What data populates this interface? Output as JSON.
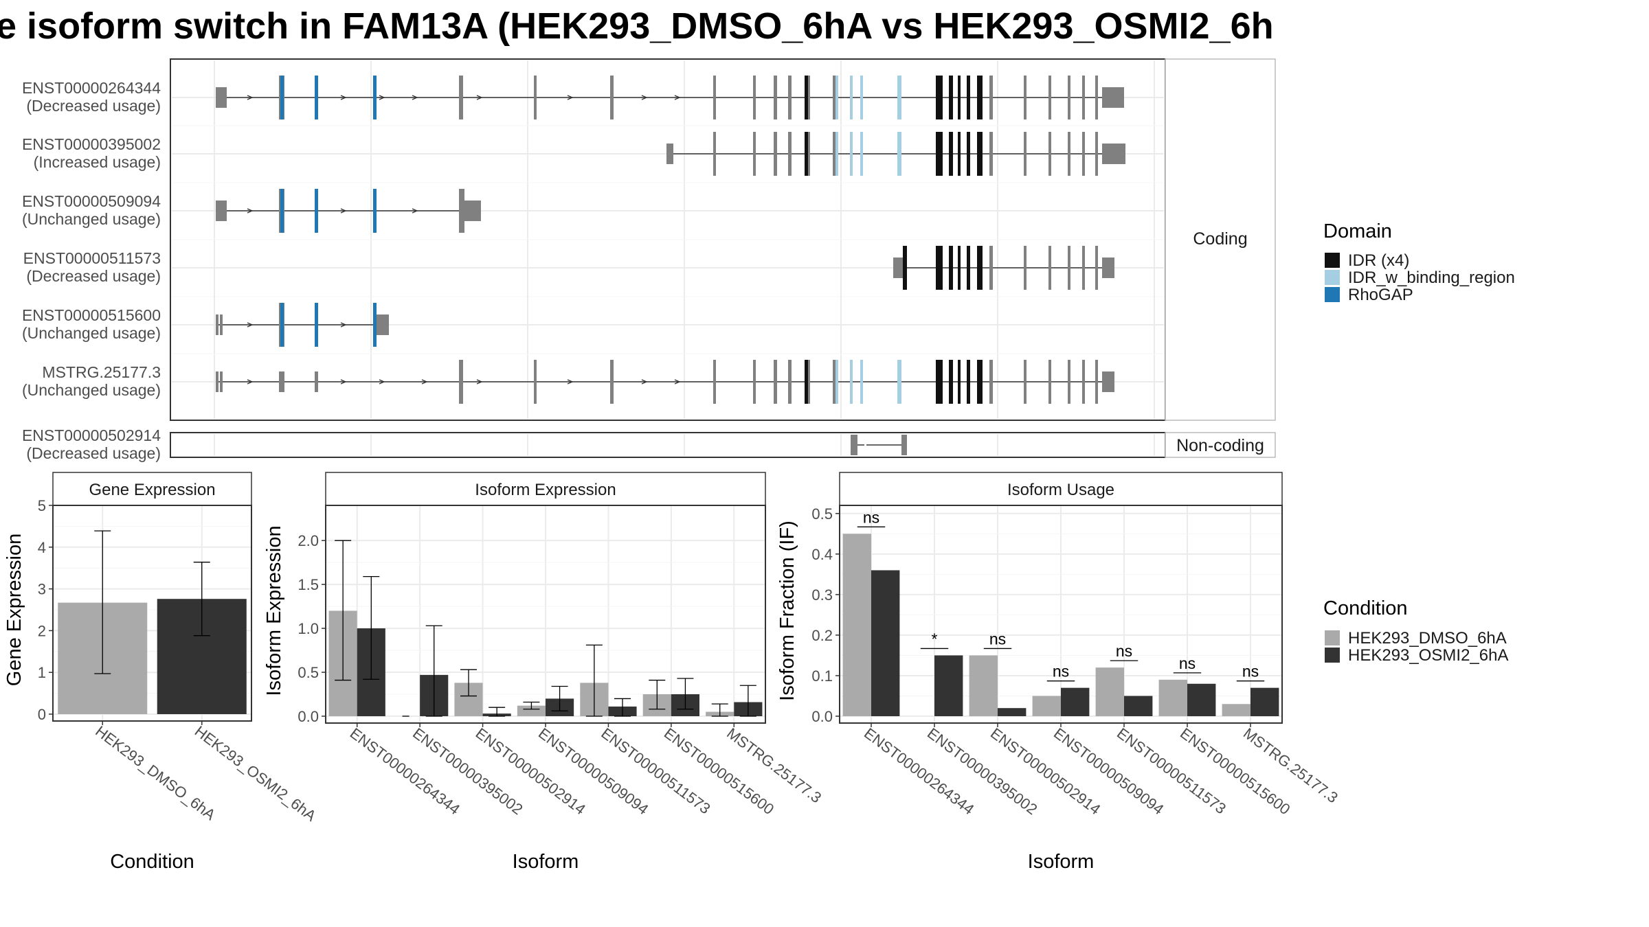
{
  "title": "e isoform switch in FAM13A (HEK293_DMSO_6hA vs HEK293_OSMI2_6h",
  "colors": {
    "grey_feature": "#808080",
    "idr": "#111111",
    "idr_w_binding": "#a6cee3",
    "rhogap": "#1f78b4",
    "cond1": "#aaaaaa",
    "cond2": "#333333",
    "grid": "#ebebeb",
    "frame": "#333333"
  },
  "transcripts": {
    "coding_label": "Coding",
    "noncoding_label": "Non-coding",
    "rows": [
      {
        "id": "ENST00000264344",
        "usage": "(Decreased usage)"
      },
      {
        "id": "ENST00000395002",
        "usage": "(Increased usage)"
      },
      {
        "id": "ENST00000509094",
        "usage": "(Unchanged usage)"
      },
      {
        "id": "ENST00000511573",
        "usage": "(Decreased usage)"
      },
      {
        "id": "ENST00000515600",
        "usage": "(Unchanged usage)"
      },
      {
        "id": "MSTRG.25177.3",
        "usage": "(Unchanged usage)"
      }
    ],
    "noncoding_rows": [
      {
        "id": "ENST00000502914",
        "usage": "(Decreased usage)"
      }
    ]
  },
  "domain_legend": {
    "title": "Domain",
    "items": [
      {
        "label": "IDR (x4)",
        "color": "#111111"
      },
      {
        "label": "IDR_w_binding_region",
        "color": "#a6cee3"
      },
      {
        "label": "RhoGAP",
        "color": "#1f78b4"
      }
    ]
  },
  "condition_legend": {
    "title": "Condition",
    "items": [
      {
        "label": "HEK293_DMSO_6hA",
        "color": "#aaaaaa"
      },
      {
        "label": "HEK293_OSMI2_6hA",
        "color": "#333333"
      }
    ]
  },
  "chart_data": [
    {
      "type": "bar",
      "title": "Gene Expression",
      "xlabel": "Condition",
      "ylabel": "Gene Expression",
      "ylim": [
        0,
        5
      ],
      "yticks": [
        "0",
        "1",
        "2",
        "3",
        "4",
        "5"
      ],
      "categories": [
        "HEK293_DMSO_6hA",
        "HEK293_OSMI2_6hA"
      ],
      "values": [
        2.67,
        2.76
      ],
      "error_low": [
        0.97,
        1.88
      ],
      "error_high": [
        4.39,
        3.64
      ]
    },
    {
      "type": "bar",
      "title": "Isoform Expression",
      "xlabel": "Isoform",
      "ylabel": "Isoform Expression",
      "ylim": [
        0,
        2.4
      ],
      "yticks": [
        "0.0",
        "0.5",
        "1.0",
        "1.5",
        "2.0"
      ],
      "categories": [
        "ENST00000264344",
        "ENST00000395002",
        "ENST00000502914",
        "ENST00000509094",
        "ENST00000511573",
        "ENST00000515600",
        "MSTRG.25177.3"
      ],
      "series": [
        {
          "name": "HEK293_DMSO_6hA",
          "values": [
            1.2,
            0.0,
            0.38,
            0.12,
            0.38,
            0.25,
            0.05
          ],
          "error_low": [
            0.41,
            0.0,
            0.23,
            0.08,
            0.0,
            0.08,
            0.0
          ],
          "error_high": [
            2.0,
            0.0,
            0.53,
            0.16,
            0.81,
            0.41,
            0.14
          ]
        },
        {
          "name": "HEK293_OSMI2_6hA",
          "values": [
            1.0,
            0.47,
            0.03,
            0.2,
            0.11,
            0.25,
            0.16
          ],
          "error_low": [
            0.42,
            0.0,
            0.0,
            0.06,
            0.0,
            0.08,
            0.0
          ],
          "error_high": [
            1.59,
            1.03,
            0.1,
            0.34,
            0.2,
            0.43,
            0.35
          ]
        }
      ]
    },
    {
      "type": "bar",
      "title": "Isoform Usage",
      "xlabel": "Isoform",
      "ylabel": "Isoform Fraction (IF)",
      "ylim": [
        0,
        0.52
      ],
      "yticks": [
        "0.0",
        "0.1",
        "0.2",
        "0.3",
        "0.4",
        "0.5"
      ],
      "categories": [
        "ENST00000264344",
        "ENST00000395002",
        "ENST00000502914",
        "ENST00000509094",
        "ENST00000511573",
        "ENST00000515600",
        "MSTRG.25177.3"
      ],
      "series": [
        {
          "name": "HEK293_DMSO_6hA",
          "values": [
            0.45,
            0.0,
            0.15,
            0.05,
            0.12,
            0.09,
            0.03
          ]
        },
        {
          "name": "HEK293_OSMI2_6hA",
          "values": [
            0.36,
            0.15,
            0.02,
            0.07,
            0.05,
            0.08,
            0.07
          ]
        }
      ],
      "annotations": [
        "ns",
        "*",
        "ns",
        "ns",
        "ns",
        "ns",
        "ns"
      ]
    }
  ]
}
